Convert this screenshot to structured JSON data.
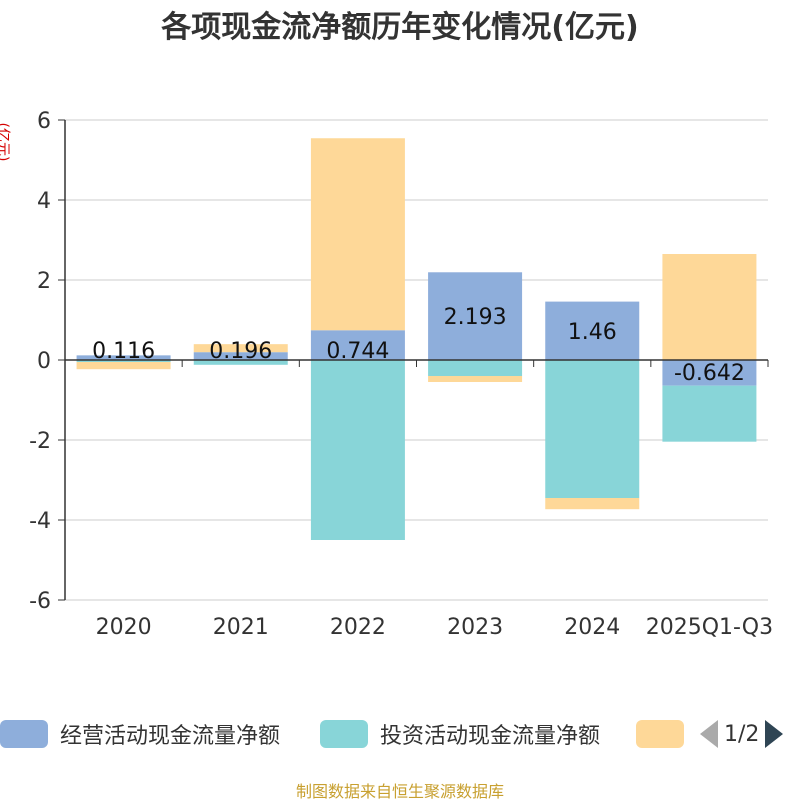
{
  "chart_data": {
    "type": "bar",
    "stacked": true,
    "title": "各项现金流净额历年变化情况(亿元)",
    "ylabel": "(亿元)",
    "ylim": [
      -6,
      6
    ],
    "yticks": [
      6,
      4,
      2,
      0,
      -2,
      -4,
      -6
    ],
    "categories": [
      "2020",
      "2021",
      "2022",
      "2023",
      "2024",
      "2025Q1-Q3"
    ],
    "series": [
      {
        "name": "经营活动现金流量净额",
        "color": "#8eaedb",
        "values": [
          0.116,
          0.196,
          0.744,
          2.193,
          1.46,
          -0.642
        ],
        "labels": [
          "0.116",
          "0.196",
          "0.744",
          "2.193",
          "1.46",
          "-0.642"
        ]
      },
      {
        "name": "投资活动现金流量净额",
        "color": "#88d5d8",
        "values": [
          -0.05,
          -0.12,
          -4.5,
          -0.4,
          -3.45,
          -1.4
        ]
      },
      {
        "name": "",
        "color": "#fed898",
        "values": [
          -0.18,
          0.2,
          4.8,
          -0.15,
          -0.28,
          2.65
        ]
      }
    ]
  },
  "legend": {
    "page_text": "1/2"
  },
  "source": "制图数据来自恒生聚源数据库"
}
